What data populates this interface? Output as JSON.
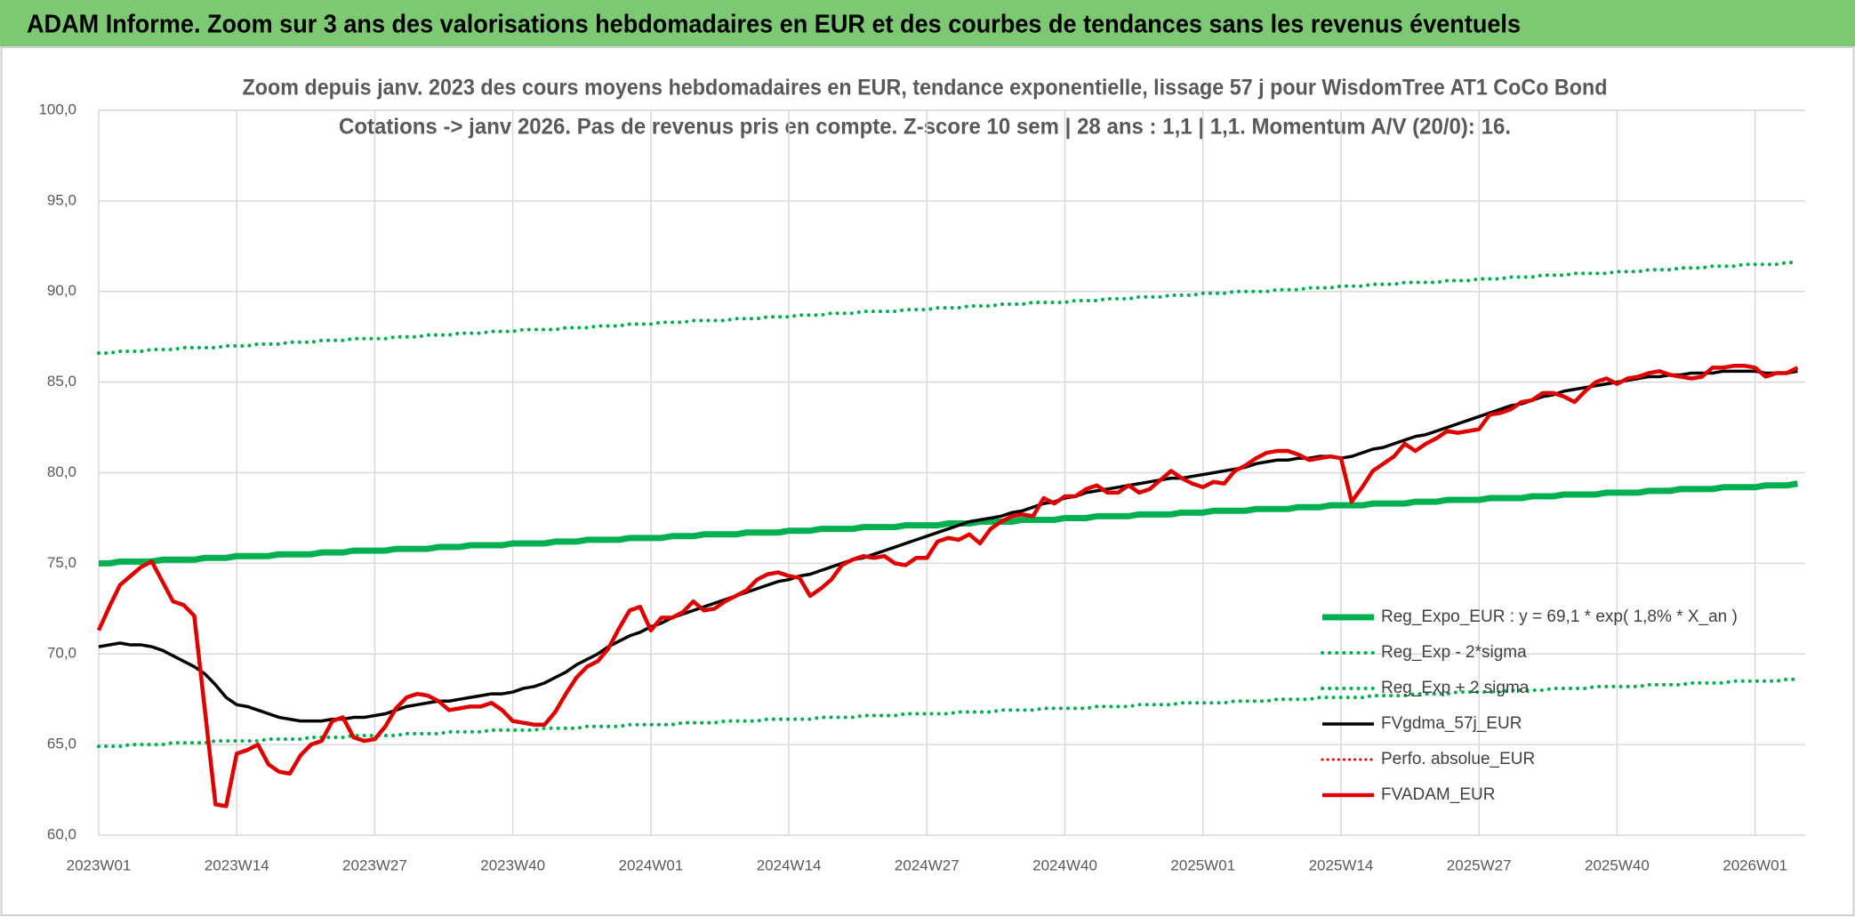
{
  "header": {
    "title": "ADAM Informe. Zoom sur 3 ans des valorisations hebdomadaires en EUR et des courbes de tendances sans les revenus éventuels"
  },
  "chart_data": {
    "type": "line",
    "title": "Zoom depuis janv. 2023 des cours moyens hebdomadaires en EUR, tendance exponentielle, lissage 57 j pour WisdomTree AT1 CoCo Bond",
    "subtitle": "Cotations -> janv 2026. Pas de revenus pris en compte. Z-score 10 sem | 28 ans : 1,1 | 1,1. Momentum A/V (20/0): 16.",
    "categories": [
      "2023W01",
      null,
      null,
      null,
      null,
      null,
      null,
      null,
      null,
      null,
      null,
      null,
      null,
      "2023W14",
      null,
      null,
      null,
      null,
      null,
      null,
      null,
      null,
      null,
      null,
      null,
      null,
      "2023W27",
      null,
      null,
      null,
      null,
      null,
      null,
      null,
      null,
      null,
      null,
      null,
      null,
      "2023W40",
      null,
      null,
      null,
      null,
      null,
      null,
      null,
      null,
      null,
      null,
      null,
      null,
      "2024W01",
      null,
      null,
      null,
      null,
      null,
      null,
      null,
      null,
      null,
      null,
      null,
      null,
      "2024W14",
      null,
      null,
      null,
      null,
      null,
      null,
      null,
      null,
      null,
      null,
      null,
      null,
      "2024W27",
      null,
      null,
      null,
      null,
      null,
      null,
      null,
      null,
      null,
      null,
      null,
      null,
      "2024W40",
      null,
      null,
      null,
      null,
      null,
      null,
      null,
      null,
      null,
      null,
      null,
      null,
      "2025W01",
      null,
      null,
      null,
      null,
      null,
      null,
      null,
      null,
      null,
      null,
      null,
      null,
      "2025W14",
      null,
      null,
      null,
      null,
      null,
      null,
      null,
      null,
      null,
      null,
      null,
      null,
      "2025W27",
      null,
      null,
      null,
      null,
      null,
      null,
      null,
      null,
      null,
      null,
      null,
      null,
      "2025W40",
      null,
      null,
      null,
      null,
      null,
      null,
      null,
      null,
      null,
      null,
      null,
      null,
      "2026W01",
      null,
      null,
      null,
      null
    ],
    "ylim": [
      60,
      100
    ],
    "yticks": [
      {
        "value": 60,
        "label": "60,0"
      },
      {
        "value": 65,
        "label": "65,0"
      },
      {
        "value": 70,
        "label": "70,0"
      },
      {
        "value": 75,
        "label": "75,0"
      },
      {
        "value": 80,
        "label": "80,0"
      },
      {
        "value": 85,
        "label": "85,0"
      },
      {
        "value": 90,
        "label": "90,0"
      },
      {
        "value": 95,
        "label": "95,0"
      },
      {
        "value": 100,
        "label": "100,0"
      }
    ],
    "grid": true,
    "legend": "lower right",
    "series": [
      {
        "name": "Reg_Expo_EUR : y = 69,1 * exp( 1,8% * X_an )",
        "color": "#00b050",
        "style": "solid",
        "width": 7,
        "values": [
          75.0,
          75.0,
          75.1,
          75.1,
          75.1,
          75.1,
          75.2,
          75.2,
          75.2,
          75.2,
          75.3,
          75.3,
          75.3,
          75.4,
          75.4,
          75.4,
          75.4,
          75.5,
          75.5,
          75.5,
          75.5,
          75.6,
          75.6,
          75.6,
          75.7,
          75.7,
          75.7,
          75.7,
          75.8,
          75.8,
          75.8,
          75.8,
          75.9,
          75.9,
          75.9,
          76.0,
          76.0,
          76.0,
          76.0,
          76.1,
          76.1,
          76.1,
          76.1,
          76.2,
          76.2,
          76.2,
          76.3,
          76.3,
          76.3,
          76.3,
          76.4,
          76.4,
          76.4,
          76.4,
          76.5,
          76.5,
          76.5,
          76.6,
          76.6,
          76.6,
          76.6,
          76.7,
          76.7,
          76.7,
          76.7,
          76.8,
          76.8,
          76.8,
          76.9,
          76.9,
          76.9,
          76.9,
          77.0,
          77.0,
          77.0,
          77.0,
          77.1,
          77.1,
          77.1,
          77.1,
          77.2,
          77.2,
          77.2,
          77.3,
          77.3,
          77.3,
          77.3,
          77.4,
          77.4,
          77.4,
          77.4,
          77.5,
          77.5,
          77.5,
          77.6,
          77.6,
          77.6,
          77.6,
          77.7,
          77.7,
          77.7,
          77.7,
          77.8,
          77.8,
          77.8,
          77.9,
          77.9,
          77.9,
          77.9,
          78.0,
          78.0,
          78.0,
          78.0,
          78.1,
          78.1,
          78.1,
          78.2,
          78.2,
          78.2,
          78.2,
          78.3,
          78.3,
          78.3,
          78.3,
          78.4,
          78.4,
          78.4,
          78.5,
          78.5,
          78.5,
          78.5,
          78.6,
          78.6,
          78.6,
          78.6,
          78.7,
          78.7,
          78.7,
          78.8,
          78.8,
          78.8,
          78.8,
          78.9,
          78.9,
          78.9,
          78.9,
          79.0,
          79.0,
          79.0,
          79.1,
          79.1,
          79.1,
          79.1,
          79.2,
          79.2,
          79.2,
          79.2,
          79.3,
          79.3,
          79.3,
          79.4
        ]
      },
      {
        "name": "Reg_Exp - 2*sigma",
        "color": "#00b050",
        "style": "dotted",
        "width": 4,
        "values": [
          64.9,
          64.9,
          64.9,
          65.0,
          65.0,
          65.0,
          65.0,
          65.1,
          65.1,
          65.1,
          65.1,
          65.2,
          65.2,
          65.2,
          65.2,
          65.2,
          65.3,
          65.3,
          65.3,
          65.3,
          65.4,
          65.4,
          65.4,
          65.4,
          65.5,
          65.5,
          65.5,
          65.5,
          65.5,
          65.6,
          65.6,
          65.6,
          65.6,
          65.7,
          65.7,
          65.7,
          65.7,
          65.8,
          65.8,
          65.8,
          65.8,
          65.8,
          65.9,
          65.9,
          65.9,
          65.9,
          66.0,
          66.0,
          66.0,
          66.0,
          66.1,
          66.1,
          66.1,
          66.1,
          66.1,
          66.2,
          66.2,
          66.2,
          66.2,
          66.3,
          66.3,
          66.3,
          66.3,
          66.4,
          66.4,
          66.4,
          66.4,
          66.4,
          66.5,
          66.5,
          66.5,
          66.5,
          66.6,
          66.6,
          66.6,
          66.6,
          66.7,
          66.7,
          66.7,
          66.7,
          66.7,
          66.8,
          66.8,
          66.8,
          66.8,
          66.9,
          66.9,
          66.9,
          66.9,
          67.0,
          67.0,
          67.0,
          67.0,
          67.0,
          67.1,
          67.1,
          67.1,
          67.1,
          67.2,
          67.2,
          67.2,
          67.2,
          67.3,
          67.3,
          67.3,
          67.3,
          67.3,
          67.4,
          67.4,
          67.4,
          67.4,
          67.5,
          67.5,
          67.5,
          67.5,
          67.6,
          67.6,
          67.6,
          67.6,
          67.6,
          67.7,
          67.7,
          67.7,
          67.7,
          67.8,
          67.8,
          67.8,
          67.8,
          67.9,
          67.9,
          67.9,
          67.9,
          67.9,
          68.0,
          68.0,
          68.0,
          68.0,
          68.1,
          68.1,
          68.1,
          68.1,
          68.2,
          68.2,
          68.2,
          68.2,
          68.2,
          68.3,
          68.3,
          68.3,
          68.3,
          68.4,
          68.4,
          68.4,
          68.4,
          68.5,
          68.5,
          68.5,
          68.5,
          68.5,
          68.6,
          68.6
        ]
      },
      {
        "name": "Reg_Exp + 2 sigma",
        "color": "#00b050",
        "style": "dotted",
        "width": 4,
        "values": [
          86.6,
          86.6,
          86.7,
          86.7,
          86.7,
          86.8,
          86.8,
          86.8,
          86.9,
          86.9,
          86.9,
          86.9,
          87.0,
          87.0,
          87.0,
          87.1,
          87.1,
          87.1,
          87.2,
          87.2,
          87.2,
          87.3,
          87.3,
          87.3,
          87.4,
          87.4,
          87.4,
          87.4,
          87.5,
          87.5,
          87.5,
          87.6,
          87.6,
          87.6,
          87.7,
          87.7,
          87.7,
          87.8,
          87.8,
          87.8,
          87.9,
          87.9,
          87.9,
          87.9,
          88.0,
          88.0,
          88.0,
          88.1,
          88.1,
          88.1,
          88.2,
          88.2,
          88.2,
          88.3,
          88.3,
          88.3,
          88.4,
          88.4,
          88.4,
          88.4,
          88.5,
          88.5,
          88.5,
          88.6,
          88.6,
          88.6,
          88.7,
          88.7,
          88.7,
          88.8,
          88.8,
          88.8,
          88.9,
          88.9,
          88.9,
          88.9,
          89.0,
          89.0,
          89.0,
          89.1,
          89.1,
          89.1,
          89.2,
          89.2,
          89.2,
          89.3,
          89.3,
          89.3,
          89.4,
          89.4,
          89.4,
          89.4,
          89.5,
          89.5,
          89.5,
          89.6,
          89.6,
          89.6,
          89.7,
          89.7,
          89.7,
          89.8,
          89.8,
          89.8,
          89.9,
          89.9,
          89.9,
          90.0,
          90.0,
          90.0,
          90.0,
          90.1,
          90.1,
          90.1,
          90.2,
          90.2,
          90.2,
          90.3,
          90.3,
          90.3,
          90.4,
          90.4,
          90.4,
          90.5,
          90.5,
          90.5,
          90.5,
          90.6,
          90.6,
          90.6,
          90.7,
          90.7,
          90.7,
          90.8,
          90.8,
          90.8,
          90.9,
          90.9,
          90.9,
          91.0,
          91.0,
          91.0,
          91.0,
          91.1,
          91.1,
          91.1,
          91.2,
          91.2,
          91.2,
          91.3,
          91.3,
          91.3,
          91.4,
          91.4,
          91.4,
          91.5,
          91.5,
          91.5,
          91.5,
          91.6,
          91.6
        ]
      },
      {
        "name": "FVgdma_57j_EUR",
        "color": "#000000",
        "style": "solid",
        "width": 3.5,
        "values": [
          70.4,
          70.5,
          70.6,
          70.5,
          70.5,
          70.4,
          70.2,
          69.9,
          69.6,
          69.3,
          68.9,
          68.3,
          67.6,
          67.2,
          67.1,
          66.9,
          66.7,
          66.5,
          66.4,
          66.3,
          66.3,
          66.3,
          66.4,
          66.4,
          66.5,
          66.5,
          66.6,
          66.7,
          66.9,
          67.1,
          67.2,
          67.3,
          67.4,
          67.4,
          67.5,
          67.6,
          67.7,
          67.8,
          67.8,
          67.9,
          68.1,
          68.2,
          68.4,
          68.7,
          69.0,
          69.4,
          69.7,
          70.0,
          70.4,
          70.7,
          71.0,
          71.2,
          71.5,
          71.7,
          72.0,
          72.2,
          72.4,
          72.6,
          72.8,
          73.0,
          73.2,
          73.4,
          73.6,
          73.8,
          74.0,
          74.1,
          74.3,
          74.4,
          74.6,
          74.8,
          75.0,
          75.2,
          75.3,
          75.5,
          75.7,
          75.9,
          76.1,
          76.3,
          76.5,
          76.7,
          76.9,
          77.1,
          77.3,
          77.4,
          77.5,
          77.6,
          77.8,
          77.9,
          78.1,
          78.3,
          78.4,
          78.6,
          78.7,
          78.9,
          79.0,
          79.1,
          79.2,
          79.3,
          79.4,
          79.5,
          79.6,
          79.7,
          79.7,
          79.8,
          79.9,
          80.0,
          80.1,
          80.2,
          80.3,
          80.5,
          80.6,
          80.7,
          80.7,
          80.8,
          80.8,
          80.9,
          80.9,
          80.8,
          80.9,
          81.1,
          81.3,
          81.4,
          81.6,
          81.8,
          82.0,
          82.1,
          82.3,
          82.5,
          82.7,
          82.9,
          83.1,
          83.3,
          83.5,
          83.7,
          83.8,
          84.0,
          84.2,
          84.3,
          84.5,
          84.6,
          84.7,
          84.8,
          84.9,
          85.0,
          85.1,
          85.2,
          85.3,
          85.3,
          85.4,
          85.4,
          85.5,
          85.5,
          85.5,
          85.6,
          85.6,
          85.6,
          85.6,
          85.5,
          85.5,
          85.5,
          85.6
        ]
      },
      {
        "name": "Perfo. absolue_EUR",
        "color": "#e00000",
        "style": "dotted",
        "width": 3
      },
      {
        "name": "FVADAM_EUR",
        "color": "#e00000",
        "style": "solid",
        "width": 4.5,
        "values": [
          71.3,
          72.6,
          73.8,
          74.3,
          74.8,
          75.1,
          74.0,
          72.9,
          72.7,
          72.1,
          66.9,
          61.7,
          61.6,
          64.5,
          64.7,
          65.0,
          63.9,
          63.5,
          63.4,
          64.4,
          65.0,
          65.2,
          66.3,
          66.5,
          65.4,
          65.2,
          65.3,
          66.0,
          67.0,
          67.6,
          67.8,
          67.7,
          67.4,
          66.9,
          67.0,
          67.1,
          67.1,
          67.3,
          66.9,
          66.3,
          66.2,
          66.1,
          66.1,
          66.8,
          67.8,
          68.7,
          69.3,
          69.6,
          70.3,
          71.4,
          72.4,
          72.6,
          71.3,
          72.0,
          72.0,
          72.3,
          72.9,
          72.4,
          72.5,
          72.9,
          73.2,
          73.5,
          74.1,
          74.4,
          74.5,
          74.3,
          74.2,
          73.2,
          73.6,
          74.1,
          74.9,
          75.2,
          75.4,
          75.3,
          75.4,
          75.0,
          74.9,
          75.3,
          75.3,
          76.2,
          76.4,
          76.3,
          76.6,
          76.1,
          76.9,
          77.3,
          77.6,
          77.7,
          77.6,
          78.6,
          78.3,
          78.7,
          78.7,
          79.1,
          79.3,
          78.9,
          78.9,
          79.3,
          78.9,
          79.1,
          79.6,
          80.1,
          79.7,
          79.4,
          79.2,
          79.5,
          79.4,
          80.1,
          80.4,
          80.8,
          81.1,
          81.2,
          81.2,
          81.0,
          80.7,
          80.8,
          80.9,
          80.8,
          78.4,
          79.2,
          80.1,
          80.5,
          80.9,
          81.6,
          81.2,
          81.6,
          81.9,
          82.3,
          82.2,
          82.3,
          82.4,
          83.2,
          83.3,
          83.5,
          83.9,
          84.0,
          84.4,
          84.4,
          84.2,
          83.9,
          84.5,
          85.0,
          85.2,
          84.9,
          85.2,
          85.3,
          85.5,
          85.6,
          85.4,
          85.3,
          85.2,
          85.3,
          85.8,
          85.8,
          85.9,
          85.9,
          85.8,
          85.3,
          85.5,
          85.5,
          85.8
        ]
      }
    ]
  }
}
